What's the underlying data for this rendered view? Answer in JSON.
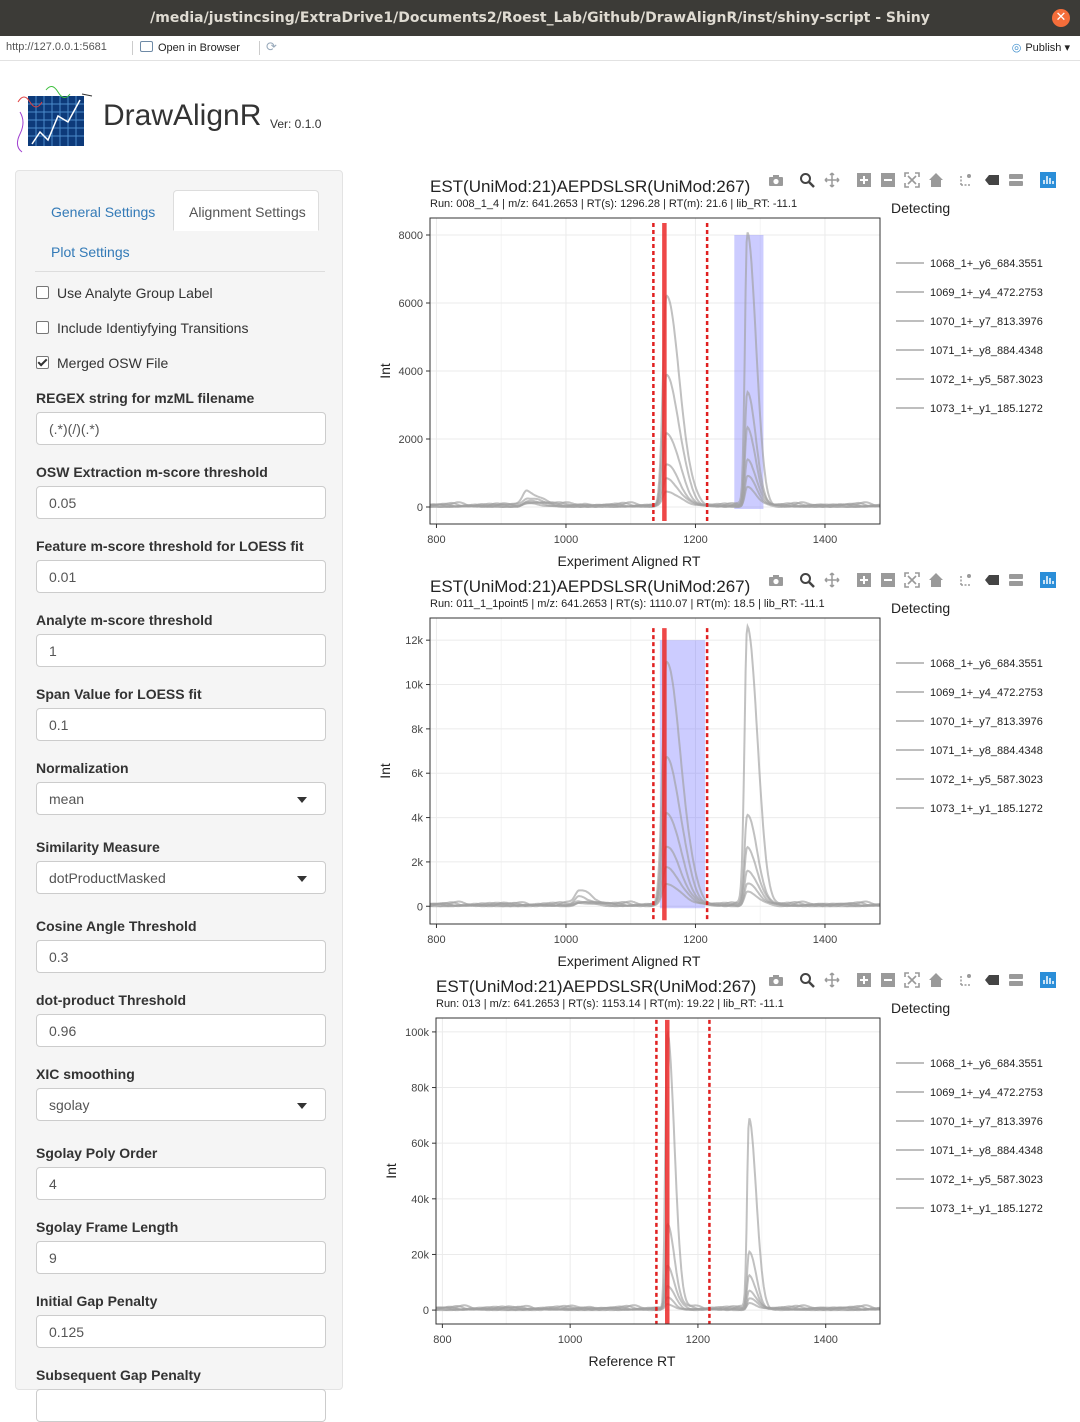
{
  "window": {
    "title": "/media/justincsing/ExtraDrive1/Documents2/Roest_Lab/Github/DrawAlignR/inst/shiny-script - Shiny"
  },
  "toolbar": {
    "url": "http://127.0.0.1:5681",
    "open_in_browser": "Open in Browser",
    "publish": "Publish"
  },
  "app": {
    "title": "DrawAlignR",
    "version": "Ver: 0.1.0"
  },
  "tabs": [
    "General Settings",
    "Alignment Settings",
    "Plot Settings"
  ],
  "checkboxes": [
    {
      "label": "Use Analyte Group Label",
      "checked": false
    },
    {
      "label": "Include Identiyfying Transitions",
      "checked": false
    },
    {
      "label": "Merged OSW File",
      "checked": true
    }
  ],
  "fields": [
    {
      "label": "REGEX string for mzML filename",
      "value": "(.*)(/)(.*)",
      "type": "text"
    },
    {
      "label": "OSW Extraction m-score threshold",
      "value": "0.05",
      "type": "text"
    },
    {
      "label": "Feature m-score threshold for LOESS fit",
      "value": "0.01",
      "type": "text"
    },
    {
      "label": "Analyte m-score threshold",
      "value": "1",
      "type": "text"
    },
    {
      "label": "Span Value for LOESS fit",
      "value": "0.1",
      "type": "text"
    },
    {
      "label": "Normalization",
      "value": "mean",
      "type": "select"
    },
    {
      "label": "Similarity Measure",
      "value": "dotProductMasked",
      "type": "select"
    },
    {
      "label": "Cosine Angle Threshold",
      "value": "0.3",
      "type": "text"
    },
    {
      "label": "dot-product Threshold",
      "value": "0.96",
      "type": "text"
    },
    {
      "label": "XIC smoothing",
      "value": "sgolay",
      "type": "select"
    },
    {
      "label": "Sgolay Poly Order",
      "value": "4",
      "type": "text"
    },
    {
      "label": "Sgolay Frame Length",
      "value": "9",
      "type": "text"
    },
    {
      "label": "Initial Gap Penalty",
      "value": "0.125",
      "type": "text"
    },
    {
      "label": "Subsequent Gap Penalty",
      "value": "",
      "type": "text"
    }
  ],
  "chart_data": [
    {
      "type": "line",
      "title": "EST(UniMod:21)AEPDSLSR(UniMod:267)",
      "subtitle": "Run: 008_1_4 | m/z: 641.2653 | RT(s): 1296.28 | RT(m): 21.6 | lib_RT: -11.1",
      "xlabel": "Experiment Aligned RT",
      "ylabel": "Int",
      "xlim": [
        790,
        1485
      ],
      "ylim": [
        -500,
        8500
      ],
      "xticks": [
        800,
        1000,
        1200,
        1400
      ],
      "xticklabels": [
        "800",
        "1000",
        "1200",
        "1400"
      ],
      "yticks": [
        0,
        2000,
        4000,
        6000,
        8000
      ],
      "yticklabels": [
        "0",
        "2000",
        "4000",
        "6000",
        "8000"
      ],
      "legend_title": "Detecting",
      "legend": [
        "1068_1+_y6_684.3551",
        "1069_1+_y4_472.2753",
        "1070_1+_y7_813.3976",
        "1071_1+_y8_884.4348",
        "1072_1+_y5_587.3023",
        "1073_1+_y1_185.1272"
      ],
      "shaded_region": [
        1260,
        1305
      ],
      "dotted_lines": [
        1135,
        1218
      ],
      "solid_line": 1152,
      "peaks": [
        {
          "center": 1155,
          "heights": [
            6200,
            3800,
            2100,
            1200,
            800,
            450
          ],
          "width": 9
        },
        {
          "center": 1280,
          "heights": [
            8000,
            3300,
            2300,
            1400,
            900,
            550
          ],
          "width": 6
        },
        {
          "center": 940,
          "heights": [
            400,
            250,
            150,
            100,
            80,
            60
          ],
          "width": 10
        }
      ]
    },
    {
      "type": "line",
      "title": "EST(UniMod:21)AEPDSLSR(UniMod:267)",
      "subtitle": "Run: 011_1_1point5 | m/z: 641.2653 | RT(s): 1110.07 | RT(m): 18.5 | lib_RT: -11.1",
      "xlabel": "Experiment Aligned RT",
      "ylabel": "Int",
      "xlim": [
        790,
        1485
      ],
      "ylim": [
        -800,
        13000
      ],
      "xticks": [
        800,
        1000,
        1200,
        1400
      ],
      "xticklabels": [
        "800",
        "1000",
        "1200",
        "1400"
      ],
      "yticks": [
        0,
        2000,
        4000,
        6000,
        8000,
        10000,
        12000
      ],
      "yticklabels": [
        "0",
        "2k",
        "4k",
        "6k",
        "8k",
        "10k",
        "12k"
      ],
      "legend_title": "Detecting",
      "legend": [
        "1068_1+_y6_684.3551",
        "1069_1+_y4_472.2753",
        "1070_1+_y7_813.3976",
        "1071_1+_y8_884.4348",
        "1072_1+_y5_587.3023",
        "1073_1+_y1_185.1272"
      ],
      "shaded_region": [
        1145,
        1215
      ],
      "dotted_lines": [
        1135,
        1218
      ],
      "solid_line": 1152,
      "peaks": [
        {
          "center": 1155,
          "heights": [
            11000,
            6600,
            4100,
            2600,
            1700,
            1000
          ],
          "width": 10
        },
        {
          "center": 1280,
          "heights": [
            12500,
            4000,
            2600,
            1600,
            1000,
            600
          ],
          "width": 7
        },
        {
          "center": 1020,
          "heights": [
            600,
            350,
            200,
            150,
            100,
            80
          ],
          "width": 10
        }
      ]
    },
    {
      "type": "line",
      "title": "EST(UniMod:21)AEPDSLSR(UniMod:267)",
      "subtitle": "Run: 013 | m/z: 641.2653 | RT(s): 1153.14 | RT(m): 19.22 | lib_RT: -11.1",
      "xlabel": "Reference RT",
      "ylabel": "Int",
      "xlim": [
        790,
        1485
      ],
      "ylim": [
        -5000,
        105000
      ],
      "xticks": [
        800,
        1000,
        1200,
        1400
      ],
      "xticklabels": [
        "800",
        "1000",
        "1200",
        "1400"
      ],
      "yticks": [
        0,
        20000,
        40000,
        60000,
        80000,
        100000
      ],
      "yticklabels": [
        "0",
        "20k",
        "40k",
        "60k",
        "80k",
        "100k"
      ],
      "legend_title": "Detecting",
      "legend": [
        "1068_1+_y6_684.3551",
        "1069_1+_y4_472.2753",
        "1070_1+_y7_813.3976",
        "1071_1+_y8_884.4348",
        "1072_1+_y5_587.3023",
        "1073_1+_y1_185.1272"
      ],
      "shaded_region": null,
      "dotted_lines": [
        1135,
        1218
      ],
      "solid_line": 1152,
      "peaks": [
        {
          "center": 1152,
          "heights": [
            100000,
            30000,
            15000,
            8000,
            4000,
            2000
          ],
          "width": 5
        },
        {
          "center": 1280,
          "heights": [
            68000,
            20000,
            12000,
            7000,
            4000,
            2000
          ],
          "width": 5
        }
      ]
    }
  ]
}
